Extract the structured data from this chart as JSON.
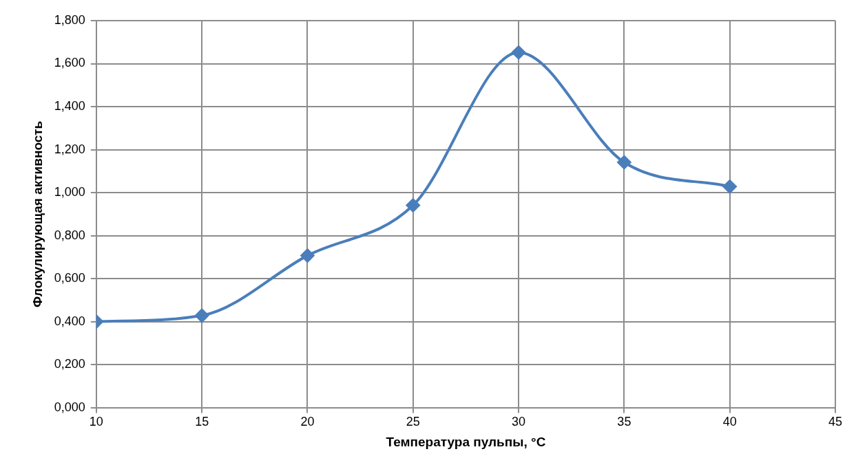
{
  "chart_data": {
    "type": "line",
    "xlabel": "Температура пульпы, °C",
    "ylabel": "Флокулирующая активность",
    "x": [
      10,
      15,
      20,
      25,
      30,
      35,
      40
    ],
    "series": [
      {
        "color": "#4a7ebb",
        "values": [
          0.4,
          0.428,
          0.707,
          0.941,
          1.652,
          1.141,
          1.028
        ]
      }
    ],
    "xlim": [
      10,
      45
    ],
    "xticks": [
      10,
      15,
      20,
      25,
      30,
      35,
      40,
      45
    ],
    "ylim": [
      0,
      1.8
    ],
    "yticks": [
      {
        "value": 0,
        "label": "0,000"
      },
      {
        "value": 0.2,
        "label": "0,200"
      },
      {
        "value": 0.4,
        "label": "0,400"
      },
      {
        "value": 0.6,
        "label": "0,600"
      },
      {
        "value": 0.8,
        "label": "0,800"
      },
      {
        "value": 1.0,
        "label": "1,000"
      },
      {
        "value": 1.2,
        "label": "1,200"
      },
      {
        "value": 1.4,
        "label": "1,400"
      },
      {
        "value": 1.6,
        "label": "1,600"
      },
      {
        "value": 1.8,
        "label": "1,800"
      }
    ],
    "grid": true,
    "marker": "diamond",
    "line_style": "solid",
    "legend": false
  }
}
